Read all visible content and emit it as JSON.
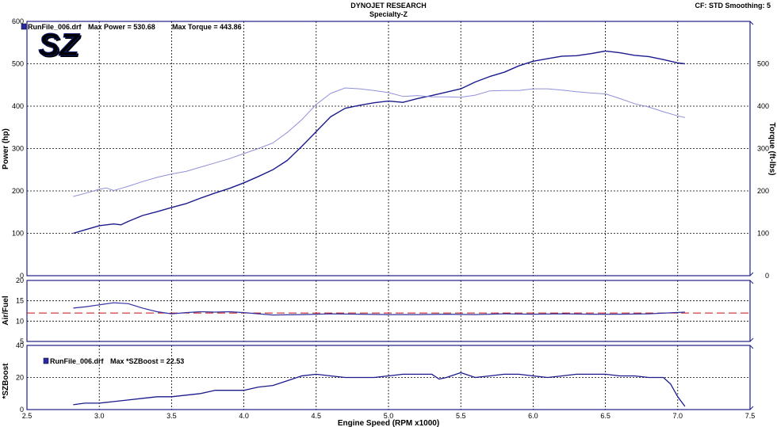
{
  "header": {
    "title": "DYNOJET RESEARCH",
    "subtitle": "Specialty-Z",
    "settings": "CF: STD  Smoothing: 5"
  },
  "logo": {
    "text": "SZ"
  },
  "colors": {
    "power": "#1a1a8c",
    "torque": "#9090d8",
    "afr": "#3030a0",
    "afr_target": "#c01010",
    "boost": "#1a1a8c",
    "axis": "#20208a",
    "grid": "#000000"
  },
  "chart_data": [
    {
      "type": "line",
      "panel": "main",
      "legend": {
        "file": "RunFile_006.drf",
        "power_label": "Max Power = 530.68",
        "torque_label": "Max Torque = 443.86"
      },
      "xlabel": "Engine Speed (RPM x1000)",
      "ylabel": "Power (hp)",
      "y2label": "Torque (ft-lbs)",
      "xlim": [
        2.5,
        7.5
      ],
      "ylim": [
        0,
        600
      ],
      "y2lim": [
        0,
        600
      ],
      "x_ticks": [
        "2.5",
        "3.0",
        "3.5",
        "4.0",
        "4.5",
        "5.0",
        "5.5",
        "6.0",
        "6.5",
        "7.0",
        "7.5"
      ],
      "y_ticks": [
        "0",
        "100",
        "200",
        "300",
        "400",
        "500",
        "600"
      ],
      "y2_ticks": [
        "0",
        "100",
        "200",
        "300",
        "400",
        "500"
      ],
      "grid": true,
      "series": [
        {
          "name": "Power",
          "x": [
            2.82,
            2.9,
            3.0,
            3.1,
            3.15,
            3.2,
            3.3,
            3.4,
            3.5,
            3.6,
            3.7,
            3.8,
            3.9,
            4.0,
            4.1,
            4.2,
            4.3,
            4.4,
            4.5,
            4.6,
            4.7,
            4.8,
            4.9,
            5.0,
            5.1,
            5.2,
            5.3,
            5.4,
            5.5,
            5.6,
            5.7,
            5.8,
            5.9,
            6.0,
            6.1,
            6.2,
            6.3,
            6.4,
            6.5,
            6.6,
            6.7,
            6.8,
            6.9,
            7.0,
            7.05
          ],
          "values": [
            100,
            108,
            118,
            122,
            120,
            128,
            142,
            151,
            161,
            170,
            183,
            195,
            206,
            219,
            234,
            250,
            272,
            305,
            340,
            375,
            395,
            402,
            408,
            412,
            409,
            418,
            425,
            433,
            441,
            457,
            470,
            480,
            495,
            506,
            512,
            518,
            519,
            524,
            530,
            526,
            520,
            517,
            510,
            502,
            500
          ]
        },
        {
          "name": "Torque",
          "x": [
            2.82,
            2.9,
            3.0,
            3.05,
            3.1,
            3.15,
            3.2,
            3.3,
            3.4,
            3.5,
            3.6,
            3.7,
            3.8,
            3.9,
            4.0,
            4.1,
            4.2,
            4.3,
            4.4,
            4.5,
            4.6,
            4.7,
            4.8,
            4.9,
            5.0,
            5.1,
            5.2,
            5.3,
            5.4,
            5.5,
            5.6,
            5.7,
            5.8,
            5.9,
            6.0,
            6.1,
            6.2,
            6.3,
            6.4,
            6.5,
            6.6,
            6.7,
            6.8,
            6.9,
            7.0,
            7.05
          ],
          "values": [
            187,
            194,
            204,
            207,
            201,
            206,
            211,
            222,
            232,
            240,
            246,
            256,
            266,
            276,
            288,
            300,
            313,
            338,
            368,
            404,
            430,
            443,
            441,
            437,
            432,
            423,
            425,
            422,
            422,
            421,
            426,
            436,
            437,
            437,
            441,
            441,
            438,
            434,
            431,
            429,
            418,
            406,
            398,
            387,
            377,
            373
          ]
        }
      ]
    },
    {
      "type": "line",
      "panel": "air_fuel",
      "ylabel": "Air/Fuel",
      "xlim": [
        2.5,
        7.5
      ],
      "ylim": [
        5,
        20
      ],
      "y_ticks": [
        "5",
        "10",
        "15",
        "20"
      ],
      "target": 12,
      "grid": true,
      "series": [
        {
          "name": "Air/Fuel",
          "x": [
            2.82,
            2.9,
            3.0,
            3.1,
            3.2,
            3.3,
            3.4,
            3.5,
            3.6,
            3.7,
            3.8,
            3.9,
            4.0,
            4.2,
            4.4,
            4.6,
            4.8,
            5.0,
            5.2,
            5.4,
            5.6,
            5.8,
            6.0,
            6.2,
            6.4,
            6.6,
            6.8,
            7.05
          ],
          "values": [
            13.2,
            13.5,
            14.0,
            14.5,
            14.3,
            13.2,
            12.3,
            11.8,
            12.1,
            12.3,
            12.2,
            12.3,
            12.1,
            11.5,
            11.6,
            11.8,
            11.7,
            11.6,
            11.6,
            11.7,
            11.6,
            11.8,
            11.7,
            11.8,
            11.7,
            11.7,
            11.8,
            12.2
          ]
        }
      ]
    },
    {
      "type": "line",
      "panel": "boost",
      "legend": {
        "file": "RunFile_006.drf",
        "boost_label": "Max *SZBoost = 22.53"
      },
      "ylabel": "*SZBoost",
      "xlim": [
        2.5,
        7.5
      ],
      "ylim": [
        0,
        40
      ],
      "y_ticks": [
        "0",
        "20",
        "40"
      ],
      "grid": true,
      "series": [
        {
          "name": "*SZBoost",
          "x": [
            2.82,
            2.9,
            3.0,
            3.1,
            3.2,
            3.3,
            3.4,
            3.5,
            3.6,
            3.7,
            3.8,
            3.9,
            4.0,
            4.1,
            4.2,
            4.3,
            4.4,
            4.5,
            4.6,
            4.7,
            4.8,
            4.9,
            5.0,
            5.1,
            5.2,
            5.3,
            5.35,
            5.4,
            5.5,
            5.6,
            5.7,
            5.8,
            5.9,
            6.0,
            6.1,
            6.2,
            6.3,
            6.4,
            6.5,
            6.6,
            6.7,
            6.8,
            6.9,
            6.95,
            7.0,
            7.05
          ],
          "values": [
            3,
            4,
            4,
            5,
            6,
            7,
            8,
            8,
            9,
            10,
            12,
            12,
            12,
            14,
            15,
            18,
            21,
            22,
            21,
            20,
            20,
            20,
            21,
            22,
            22,
            22,
            19,
            20,
            23,
            20,
            21,
            22,
            22,
            21,
            20,
            21,
            22,
            22,
            22,
            21,
            21,
            20,
            20,
            16,
            8,
            2
          ]
        }
      ]
    }
  ]
}
